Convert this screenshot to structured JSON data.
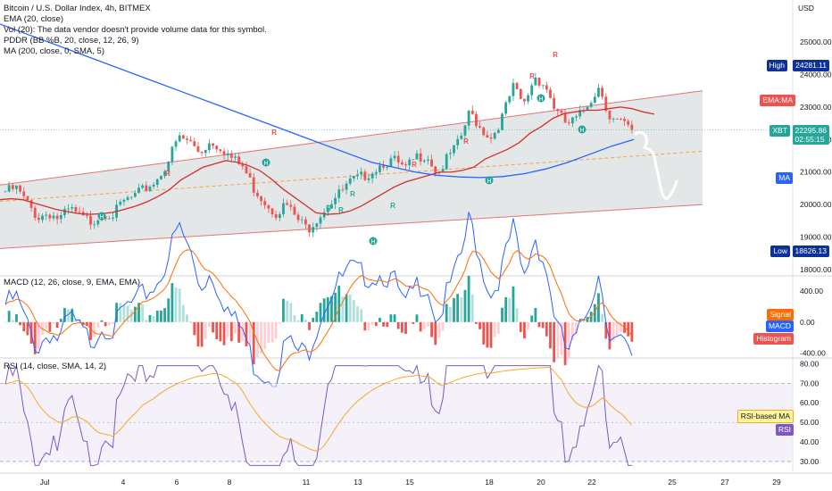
{
  "legend": {
    "title": "Bitcoin / U.S. Dollar Index, 4h, BITMEX",
    "ema": "EMA (20, close)",
    "vol": "Vol (20): The data vendor doesn't provide volume data for this symbol.",
    "pddr": "PDDR (BB %B, 20, close, 12, 26, 9)",
    "ma": "MA (200, close, 0, SMA, 5)",
    "macd": "MACD (12, 26, close, 9, EMA, EMA)",
    "rsi": "RSI (14, close, SMA, 14, 2)"
  },
  "price_axis": {
    "currency": "USD",
    "ticks": [
      "25000.00",
      "24000.00",
      "23000.00",
      "22000.00",
      "21000.00",
      "20000.00",
      "19000.00",
      "18000.00"
    ]
  },
  "price_badges": {
    "high_label": "High",
    "high_value": "24281.11",
    "ema_ma_label": "EMA:MA",
    "xbt_label": "XBT",
    "xbt_value": "22295.86",
    "xbt_countdown": "02:55:15",
    "ma_label": "MA",
    "low_label": "Low",
    "low_value": "18626.13"
  },
  "macd_axis": {
    "ticks": [
      "400.00",
      "0.00",
      "-400.00"
    ],
    "signal_label": "Signal",
    "macd_label": "MACD",
    "hist_label": "Histogram"
  },
  "rsi_axis": {
    "ticks": [
      "80.00",
      "70.00",
      "60.00",
      "50.00",
      "40.00",
      "30.00"
    ],
    "rsi_ma_label": "RSI-based MA",
    "rsi_label": "RSI"
  },
  "time_axis": {
    "labels": [
      "Jul",
      "4",
      "6",
      "8",
      "11",
      "13",
      "15",
      "18",
      "20",
      "22",
      "25",
      "27",
      "29"
    ]
  },
  "colors": {
    "up": "#26a69a",
    "down": "#ef5350",
    "ema": "#d32f2f",
    "ma": "#2962ff",
    "channel_fill": "#1e3a3a",
    "macd": "#2962ff",
    "signal": "#ff6d00",
    "rsi": "#7e57c2",
    "rsi_ma": "#f9a825",
    "rsi_band": "#ede7f6",
    "high_badge": "#0c3299",
    "xbt_badge": "#26a69a",
    "ma_badge": "#2962ff",
    "signal_badge": "#ff6d00",
    "hist_badge": "#ef5350",
    "rsi_ma_badge": "#fff59d"
  },
  "chart_data": {
    "type": "candlestick",
    "title": "Bitcoin / U.S. Dollar Index, 4h, BITMEX",
    "ylim": [
      17700,
      26100
    ],
    "x_categories": [
      "Jul",
      "4",
      "6",
      "8",
      "11",
      "13",
      "15",
      "18",
      "20",
      "22",
      "25",
      "27",
      "29"
    ],
    "close_path": [
      20400,
      20500,
      20050,
      19600,
      19750,
      19550,
      19850,
      19600,
      19480,
      19750,
      19700,
      20100,
      20250,
      20500,
      20750,
      21300,
      22050,
      21950,
      21600,
      21950,
      21750,
      21400,
      21150,
      20500,
      20100,
      19750,
      20000,
      19550,
      19250,
      19650,
      20050,
      20350,
      20700,
      20850,
      21050,
      21300,
      21350,
      21050,
      21450,
      21550,
      20950,
      21450,
      21900,
      22850,
      22350,
      22050,
      22700,
      23600,
      23050,
      23950,
      23650,
      22850,
      22450,
      22650,
      23150,
      23650,
      22650,
      22500,
      22295.86
    ],
    "ema20_path": [
      20150,
      20180,
      20150,
      20050,
      19950,
      19850,
      19780,
      19720,
      19700,
      19720,
      19760,
      19850,
      19950,
      20080,
      20250,
      20450,
      20750,
      20950,
      21150,
      21250,
      21350,
      21300,
      21200,
      21050,
      20800,
      20500,
      20250,
      20000,
      19750,
      19700,
      19720,
      19800,
      19950,
      20150,
      20350,
      20550,
      20700,
      20800,
      20900,
      21000,
      21000,
      21050,
      21150,
      21400,
      21550,
      21700,
      21900,
      22200,
      22400,
      22650,
      22800,
      22850,
      22900,
      22900,
      22950,
      23000,
      22950,
      22850,
      22780
    ],
    "ma200_path": [
      25550,
      25300,
      25050,
      24800,
      24550,
      24300,
      24050,
      23800,
      23550,
      23300,
      23050,
      22800,
      22550,
      22300,
      22050,
      21800,
      21550,
      21300,
      21150,
      21000,
      20900,
      20850,
      20830,
      20860,
      20950,
      21100,
      21300,
      21550,
      21800,
      22000
    ],
    "channel": {
      "lower_start": 18650,
      "lower_end": 20000,
      "upper_start": 20600,
      "upper_end": 23500,
      "mid_start": 20100,
      "mid_end": 21640
    },
    "high": 24281.11,
    "low": 18626.13,
    "last": 22295.86,
    "macd_ylim": [
      -450,
      560
    ],
    "macd_ticks": [
      400,
      0,
      -400
    ],
    "rsi_ylim": [
      25,
      82
    ],
    "rsi_ticks": [
      80,
      70,
      60,
      50,
      40,
      30
    ],
    "rsi_bands": [
      70,
      30
    ]
  }
}
